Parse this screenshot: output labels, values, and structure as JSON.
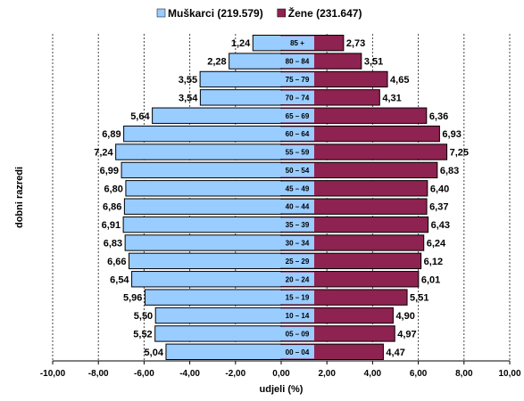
{
  "chart_data": {
    "type": "bar",
    "orientation": "horizontal",
    "style": "population-pyramid",
    "title": "",
    "xlabel": "udjeli (%)",
    "ylabel": "dobni razredi",
    "xlim": [
      -10,
      10
    ],
    "xticks": [
      -10,
      -8,
      -6,
      -4,
      -2,
      0,
      2,
      4,
      6,
      8,
      10
    ],
    "xtick_labels": [
      "-10,00",
      "-8,00",
      "-6,00",
      "-4,00",
      "-2,00",
      "0,00",
      "2,00",
      "4,00",
      "6,00",
      "8,00",
      "10,00"
    ],
    "grid": "vertical dashed",
    "legend_position": "top-center",
    "categories": [
      "85 +",
      "80 – 84",
      "75 – 79",
      "70 – 74",
      "65 – 69",
      "60 – 64",
      "55 – 59",
      "50 – 54",
      "45 – 49",
      "40 – 44",
      "35 – 39",
      "30 – 34",
      "25 – 29",
      "20 – 24",
      "15 – 19",
      "10 – 14",
      "05 – 09",
      "00 – 04"
    ],
    "series": [
      {
        "name": "Muškarci (219.579)",
        "color": "#99ccff",
        "side": "left",
        "values": [
          1.24,
          2.28,
          3.55,
          3.54,
          5.64,
          6.89,
          7.24,
          6.99,
          6.8,
          6.86,
          6.91,
          6.83,
          6.66,
          6.54,
          5.96,
          5.5,
          5.52,
          5.04
        ],
        "labels": [
          "1,24",
          "2,28",
          "3,55",
          "3,54",
          "5,64",
          "6,89",
          "7,24",
          "6,99",
          "6,80",
          "6,86",
          "6,91",
          "6,83",
          "6,66",
          "6,54",
          "5,96",
          "5,50",
          "5,52",
          "5,04"
        ]
      },
      {
        "name": "Žene (231.647)",
        "color": "#8e2250",
        "side": "right",
        "values": [
          2.73,
          3.51,
          4.65,
          4.31,
          6.36,
          6.93,
          7.25,
          6.83,
          6.4,
          6.37,
          6.43,
          6.24,
          6.12,
          6.01,
          5.51,
          4.9,
          4.97,
          4.47
        ],
        "labels": [
          "2,73",
          "3,51",
          "4,65",
          "4,31",
          "6,36",
          "6,93",
          "7,25",
          "6,83",
          "6,40",
          "6,37",
          "6,43",
          "6,24",
          "6,12",
          "6,01",
          "5,51",
          "4,90",
          "4,97",
          "4,47"
        ]
      }
    ]
  }
}
